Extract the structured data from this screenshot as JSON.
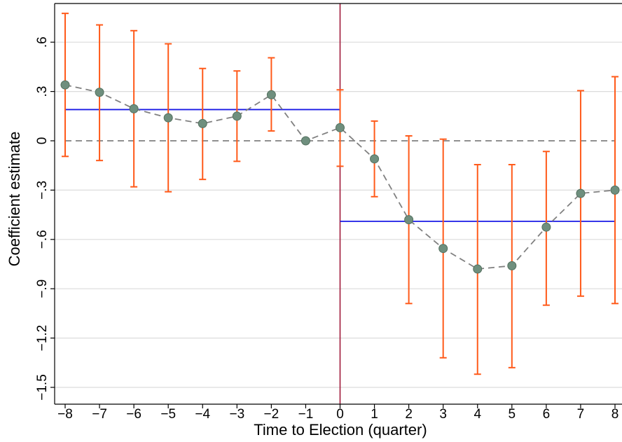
{
  "chart_data": {
    "type": "scatter",
    "xlabel": "Time to Election (quarter)",
    "ylabel": "Coefficient estimate",
    "xlim": [
      -8,
      8
    ],
    "ylim": [
      -1.6,
      0.85
    ],
    "x_ticks": [
      -8,
      -7,
      -6,
      -5,
      -4,
      -3,
      -2,
      -1,
      0,
      1,
      2,
      3,
      4,
      5,
      6,
      7,
      8
    ],
    "x_tick_labels": [
      "−8",
      "−7",
      "−6",
      "−5",
      "−4",
      "−3",
      "−2",
      "−1",
      "0",
      "1",
      "2",
      "3",
      "4",
      "5",
      "6",
      "7",
      "8"
    ],
    "y_ticks": [
      -1.5,
      -1.2,
      -0.9,
      -0.6,
      -0.3,
      0,
      0.3,
      0.6
    ],
    "y_tick_labels": [
      "−1.5",
      "−1.2",
      "−.9",
      "−.6",
      "−.3",
      "0",
      ".3",
      ".6"
    ],
    "grid": true,
    "series": [
      {
        "x": [
          -8,
          -7,
          -6,
          -5,
          -4,
          -3,
          -2,
          -1,
          0,
          1,
          2,
          3,
          4,
          5,
          6,
          7,
          8
        ],
        "y": [
          0.34,
          0.295,
          0.195,
          0.14,
          0.105,
          0.15,
          0.28,
          0.0,
          0.08,
          -0.11,
          -0.48,
          -0.655,
          -0.78,
          -0.76,
          -0.525,
          -0.32,
          -0.3
        ],
        "ci_low": [
          -0.095,
          -0.12,
          -0.28,
          -0.31,
          -0.235,
          -0.125,
          0.06,
          null,
          -0.155,
          -0.34,
          -0.99,
          -1.32,
          -1.42,
          -1.38,
          -1.0,
          -0.945,
          -0.99
        ],
        "ci_high": [
          0.775,
          0.705,
          0.67,
          0.59,
          0.44,
          0.425,
          0.505,
          null,
          0.31,
          0.12,
          0.03,
          0.01,
          -0.145,
          -0.145,
          -0.065,
          0.305,
          0.39
        ]
      }
    ],
    "reference_lines": [
      {
        "orientation": "horizontal",
        "y": 0,
        "x_range": [
          -8,
          8
        ],
        "style": "dashed"
      },
      {
        "orientation": "vertical",
        "x": 0
      },
      {
        "orientation": "horizontal",
        "y": 0.19,
        "x_range": [
          -8,
          0
        ],
        "style": "solid"
      },
      {
        "orientation": "horizontal",
        "y": -0.49,
        "x_range": [
          0,
          8
        ],
        "style": "solid"
      }
    ],
    "colors": {
      "point_fill": "#6f8f7e",
      "point_stroke": "#53705f",
      "error_bar": "#ff5a1a",
      "connector": "#808080",
      "zero_line": "#808080",
      "mean_line": "#1a1ae6",
      "event_line": "#a01a3a",
      "grid": "#dcdcdc",
      "frame": "#000000"
    }
  }
}
